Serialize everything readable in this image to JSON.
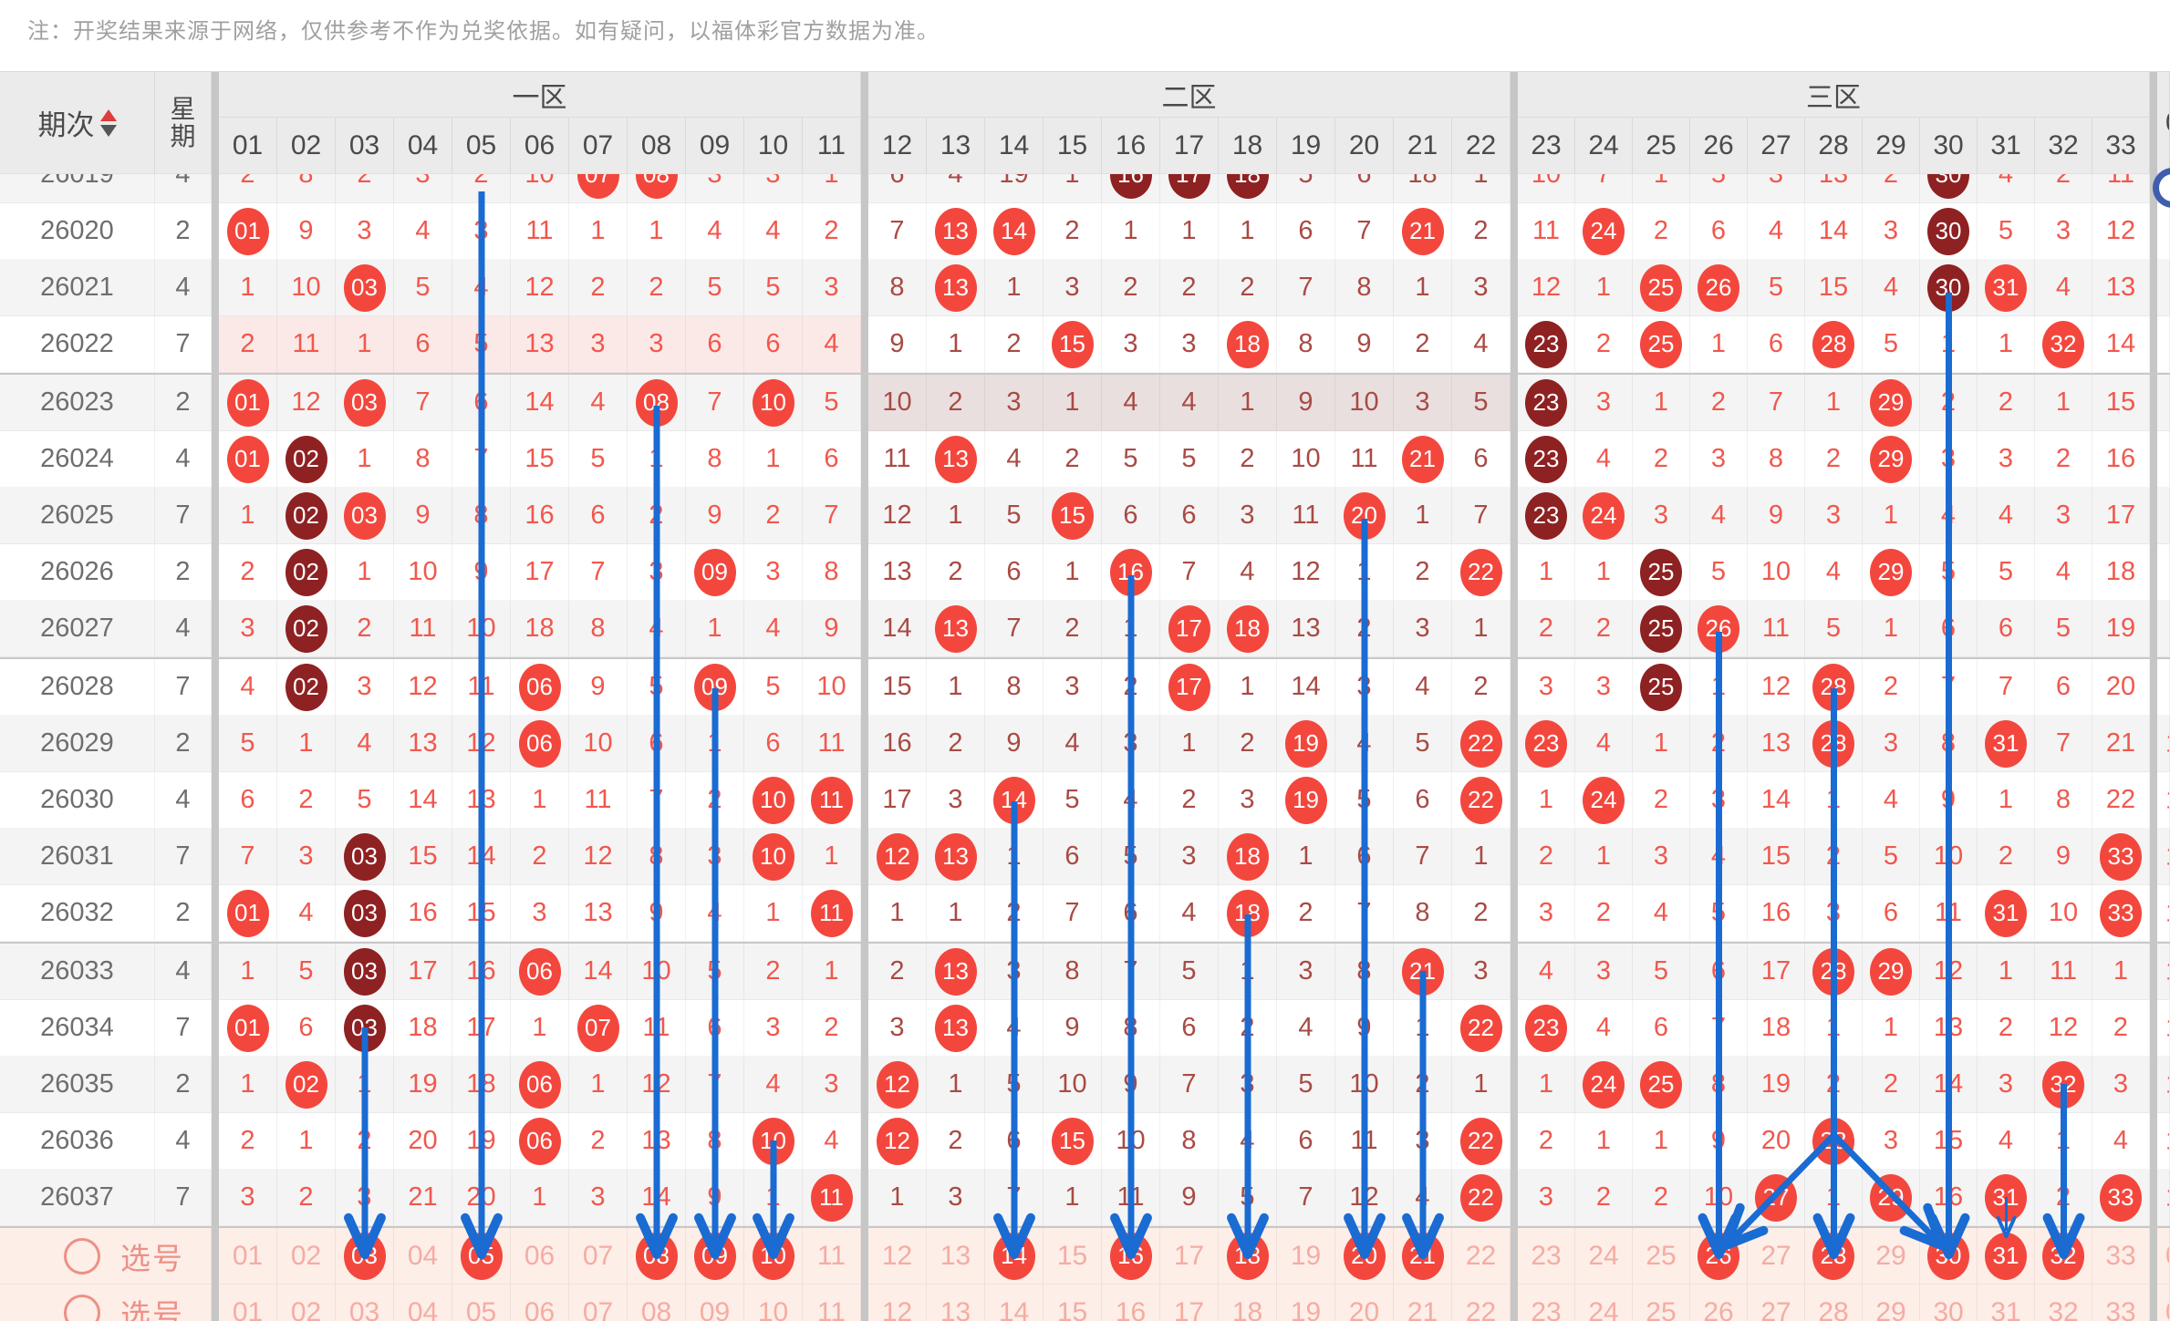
{
  "note": "注：开奖结果来源于网络，仅供参考不作为兑奖依据。如有疑问，以福体彩官方数据为准。",
  "header": {
    "period_label": "期次",
    "week_label": "星期",
    "zones": [
      {
        "label": "一区",
        "start": 1,
        "end": 11
      },
      {
        "label": "二区",
        "start": 12,
        "end": 22
      },
      {
        "label": "三区",
        "start": 23,
        "end": 33
      }
    ],
    "numbers": [
      "01",
      "02",
      "03",
      "04",
      "05",
      "06",
      "07",
      "08",
      "09",
      "10",
      "11",
      "12",
      "13",
      "14",
      "15",
      "16",
      "17",
      "18",
      "19",
      "20",
      "21",
      "22",
      "23",
      "24",
      "25",
      "26",
      "27",
      "28",
      "29",
      "30",
      "31",
      "32",
      "33"
    ],
    "overflow_col_label": "0"
  },
  "legend": {
    "plain": "miss-count",
    "c": "drawn-number-ball",
    "d": "repeat-drawn-number-ball"
  },
  "rows": [
    {
      "period": "26019",
      "week": "4",
      "clipped": true,
      "cells": [
        "2",
        "8",
        "2",
        "3",
        "2",
        "10",
        "c:07",
        "c:08",
        "3",
        "3",
        "1",
        "6",
        "4",
        "19",
        "1",
        "d:16",
        "d:17",
        "d:18",
        "5",
        "6",
        "18",
        "1",
        "10",
        "7",
        "1",
        "5",
        "3",
        "13",
        "2",
        "d:30",
        "4",
        "2",
        "11"
      ]
    },
    {
      "period": "26020",
      "week": "2",
      "cells": [
        "c:01",
        "9",
        "3",
        "4",
        "3",
        "11",
        "1",
        "1",
        "4",
        "4",
        "2",
        "7",
        "c:13",
        "c:14",
        "2",
        "1",
        "1",
        "1",
        "6",
        "7",
        "c:21",
        "2",
        "11",
        "c:24",
        "2",
        "6",
        "4",
        "14",
        "3",
        "d:30",
        "5",
        "3",
        "12"
      ]
    },
    {
      "period": "26021",
      "week": "4",
      "cells": [
        "1",
        "10",
        "c:03",
        "5",
        "4",
        "12",
        "2",
        "2",
        "5",
        "5",
        "3",
        "8",
        "c:13",
        "1",
        "3",
        "2",
        "2",
        "2",
        "7",
        "8",
        "1",
        "3",
        "12",
        "1",
        "c:25",
        "c:26",
        "5",
        "15",
        "4",
        "d:30",
        "c:31",
        "4",
        "13"
      ]
    },
    {
      "period": "26022",
      "week": "7",
      "group_end": true,
      "cells": [
        "2",
        "11",
        "1",
        "6",
        "5",
        "13",
        "3",
        "3",
        "6",
        "6",
        "4",
        "9",
        "1",
        "2",
        "c:15",
        "3",
        "3",
        "c:18",
        "8",
        "9",
        "2",
        "4",
        "d:23",
        "2",
        "c:25",
        "1",
        "6",
        "c:28",
        "5",
        "1",
        "1",
        "c:32",
        "14"
      ]
    },
    {
      "period": "26023",
      "week": "2",
      "cells": [
        "c:01",
        "12",
        "c:03",
        "7",
        "6",
        "14",
        "4",
        "c:08",
        "7",
        "c:10",
        "5",
        "10",
        "2",
        "3",
        "1",
        "4",
        "4",
        "1",
        "9",
        "10",
        "3",
        "5",
        "d:23",
        "3",
        "1",
        "2",
        "7",
        "1",
        "c:29",
        "2",
        "2",
        "1",
        "15"
      ]
    },
    {
      "period": "26024",
      "week": "4",
      "cells": [
        "c:01",
        "d:02",
        "1",
        "8",
        "7",
        "15",
        "5",
        "1",
        "8",
        "1",
        "6",
        "11",
        "c:13",
        "4",
        "2",
        "5",
        "5",
        "2",
        "10",
        "11",
        "c:21",
        "6",
        "d:23",
        "4",
        "2",
        "3",
        "8",
        "2",
        "c:29",
        "3",
        "3",
        "2",
        "16"
      ]
    },
    {
      "period": "26025",
      "week": "7",
      "cells": [
        "1",
        "d:02",
        "c:03",
        "9",
        "8",
        "16",
        "6",
        "2",
        "9",
        "2",
        "7",
        "12",
        "1",
        "5",
        "c:15",
        "6",
        "6",
        "3",
        "11",
        "c:20",
        "1",
        "7",
        "d:23",
        "c:24",
        "3",
        "4",
        "9",
        "3",
        "1",
        "4",
        "4",
        "3",
        "17"
      ]
    },
    {
      "period": "26026",
      "week": "2",
      "cells": [
        "2",
        "d:02",
        "1",
        "10",
        "9",
        "17",
        "7",
        "3",
        "c:09",
        "3",
        "8",
        "13",
        "2",
        "6",
        "1",
        "c:16",
        "7",
        "4",
        "12",
        "1",
        "2",
        "c:22",
        "1",
        "1",
        "d:25",
        "5",
        "10",
        "4",
        "c:29",
        "5",
        "5",
        "4",
        "18"
      ]
    },
    {
      "period": "26027",
      "week": "4",
      "group_end": true,
      "cells": [
        "3",
        "d:02",
        "2",
        "11",
        "10",
        "18",
        "8",
        "4",
        "1",
        "4",
        "9",
        "14",
        "c:13",
        "7",
        "2",
        "1",
        "c:17",
        "c:18",
        "13",
        "2",
        "3",
        "1",
        "2",
        "2",
        "d:25",
        "c:26",
        "11",
        "5",
        "1",
        "6",
        "6",
        "5",
        "19"
      ]
    },
    {
      "period": "26028",
      "week": "7",
      "cells": [
        "4",
        "d:02",
        "3",
        "12",
        "11",
        "c:06",
        "9",
        "5",
        "c:09",
        "5",
        "10",
        "15",
        "1",
        "8",
        "3",
        "2",
        "c:17",
        "1",
        "14",
        "3",
        "4",
        "2",
        "3",
        "3",
        "d:25",
        "1",
        "12",
        "c:28",
        "2",
        "7",
        "7",
        "6",
        "20"
      ]
    },
    {
      "period": "26029",
      "week": "2",
      "cells": [
        "5",
        "1",
        "4",
        "13",
        "12",
        "c:06",
        "10",
        "6",
        "1",
        "6",
        "11",
        "16",
        "2",
        "9",
        "4",
        "3",
        "1",
        "2",
        "c:19",
        "4",
        "5",
        "c:22",
        "c:23",
        "4",
        "1",
        "2",
        "13",
        "c:28",
        "3",
        "8",
        "c:31",
        "7",
        "21"
      ]
    },
    {
      "period": "26030",
      "week": "4",
      "cells": [
        "6",
        "2",
        "5",
        "14",
        "13",
        "1",
        "11",
        "7",
        "2",
        "c:10",
        "c:11",
        "17",
        "3",
        "c:14",
        "5",
        "4",
        "2",
        "3",
        "c:19",
        "5",
        "6",
        "c:22",
        "1",
        "c:24",
        "2",
        "3",
        "14",
        "1",
        "4",
        "9",
        "1",
        "8",
        "22"
      ]
    },
    {
      "period": "26031",
      "week": "7",
      "cells": [
        "7",
        "3",
        "d:03",
        "15",
        "14",
        "2",
        "12",
        "8",
        "3",
        "c:10",
        "1",
        "c:12",
        "c:13",
        "1",
        "6",
        "5",
        "3",
        "c:18",
        "1",
        "6",
        "7",
        "1",
        "2",
        "1",
        "3",
        "4",
        "15",
        "2",
        "5",
        "10",
        "2",
        "9",
        "c:33"
      ]
    },
    {
      "period": "26032",
      "week": "2",
      "group_end": true,
      "cells": [
        "c:01",
        "4",
        "d:03",
        "16",
        "15",
        "3",
        "13",
        "9",
        "4",
        "1",
        "c:11",
        "1",
        "1",
        "2",
        "7",
        "6",
        "4",
        "c:18",
        "2",
        "7",
        "8",
        "2",
        "3",
        "2",
        "4",
        "5",
        "16",
        "3",
        "6",
        "11",
        "c:31",
        "10",
        "c:33"
      ]
    },
    {
      "period": "26033",
      "week": "4",
      "cells": [
        "1",
        "5",
        "d:03",
        "17",
        "16",
        "c:06",
        "14",
        "10",
        "5",
        "2",
        "1",
        "2",
        "c:13",
        "3",
        "8",
        "7",
        "5",
        "1",
        "3",
        "8",
        "c:21",
        "3",
        "4",
        "3",
        "5",
        "6",
        "17",
        "c:28",
        "c:29",
        "12",
        "1",
        "11",
        "1"
      ]
    },
    {
      "period": "26034",
      "week": "7",
      "cells": [
        "c:01",
        "6",
        "d:03",
        "18",
        "17",
        "1",
        "c:07",
        "11",
        "6",
        "3",
        "2",
        "3",
        "c:13",
        "4",
        "9",
        "8",
        "6",
        "2",
        "4",
        "9",
        "1",
        "c:22",
        "c:23",
        "4",
        "6",
        "7",
        "18",
        "1",
        "1",
        "13",
        "2",
        "12",
        "2"
      ]
    },
    {
      "period": "26035",
      "week": "2",
      "cells": [
        "1",
        "c:02",
        "1",
        "19",
        "18",
        "c:06",
        "1",
        "12",
        "7",
        "4",
        "3",
        "c:12",
        "1",
        "5",
        "10",
        "9",
        "7",
        "3",
        "5",
        "10",
        "2",
        "1",
        "1",
        "c:24",
        "c:25",
        "8",
        "19",
        "2",
        "2",
        "14",
        "3",
        "c:32",
        "3"
      ]
    },
    {
      "period": "26036",
      "week": "4",
      "cells": [
        "2",
        "1",
        "2",
        "20",
        "19",
        "c:06",
        "2",
        "13",
        "8",
        "c:10",
        "4",
        "c:12",
        "2",
        "6",
        "c:15",
        "10",
        "8",
        "4",
        "6",
        "11",
        "3",
        "c:22",
        "2",
        "1",
        "1",
        "9",
        "20",
        "c:28",
        "3",
        "15",
        "4",
        "1",
        "4"
      ]
    },
    {
      "period": "26037",
      "week": "7",
      "group_end": true,
      "cells": [
        "3",
        "2",
        "3",
        "21",
        "20",
        "1",
        "3",
        "14",
        "9",
        "1",
        "c:11",
        "1",
        "3",
        "7",
        "1",
        "11",
        "9",
        "5",
        "7",
        "12",
        "4",
        "c:22",
        "3",
        "2",
        "2",
        "10",
        "c:27",
        "1",
        "c:29",
        "16",
        "c:31",
        "2",
        "c:33"
      ]
    }
  ],
  "zone_miss_highlights": [
    {
      "period": "26022",
      "zone": 1
    },
    {
      "period": "26023",
      "zone": 2
    }
  ],
  "selection_rows": [
    {
      "label": "选号",
      "selected": [
        "03",
        "05",
        "08",
        "09",
        "10",
        "14",
        "16",
        "18",
        "20",
        "21",
        "26",
        "28",
        "30",
        "31",
        "32"
      ]
    },
    {
      "label": "选号",
      "selected": [],
      "clipped": true
    }
  ],
  "arrows": [
    {
      "col": 3,
      "from": "26034"
    },
    {
      "col": 5,
      "from": "top"
    },
    {
      "col": 8,
      "from": "26023"
    },
    {
      "col": 9,
      "from": "26028"
    },
    {
      "col": 10,
      "from": "26036"
    },
    {
      "col": 14,
      "from": "26030"
    },
    {
      "col": 16,
      "from": "26026"
    },
    {
      "col": 18,
      "from": "26032"
    },
    {
      "col": 20,
      "from": "26025"
    },
    {
      "col": 21,
      "from": "26033"
    },
    {
      "col": 26,
      "from": "26027"
    },
    {
      "col": 28,
      "from": "26028"
    },
    {
      "col": 30,
      "from": "26021"
    },
    {
      "col": 31,
      "from": "26037",
      "thin": true
    },
    {
      "col": 32,
      "from": "26035"
    },
    {
      "diag": true,
      "from_col": 28,
      "from_period": "26036",
      "to_col": 26
    },
    {
      "diag": true,
      "from_col": 28,
      "from_period": "26036",
      "to_col": 30
    }
  ],
  "sliver_marks": {
    "data_periods": [
      "26029",
      "26030",
      "26031",
      "26032",
      "26033",
      "26034",
      "26035",
      "26036",
      "26037"
    ],
    "partial_digit": "1",
    "selection_partial_digit": "0"
  },
  "colors": {
    "accent_blue": "#1a6bd2",
    "ball_red": "#f3473d",
    "ball_dark": "#8e2122",
    "num_zone13": "#f2574d",
    "num_zone2": "#a94a44",
    "pick_num": "#f5aca3",
    "pick_bg": "#fdeee8",
    "pick_label": "#ee9086",
    "hl_pink": "#fbe9e7",
    "hl_mauve": "#e9dfdf",
    "stripe": "#f4f4f4",
    "bar": "#c6c6c6",
    "header_bg": "#ebebeb",
    "header_text": "#4a4a4a",
    "period_text": "#6e6e6e",
    "note_text": "#a0a0a0",
    "sort_up": "#e03a3a",
    "sort_down": "#555555",
    "float_icon": "#3f5fae"
  }
}
